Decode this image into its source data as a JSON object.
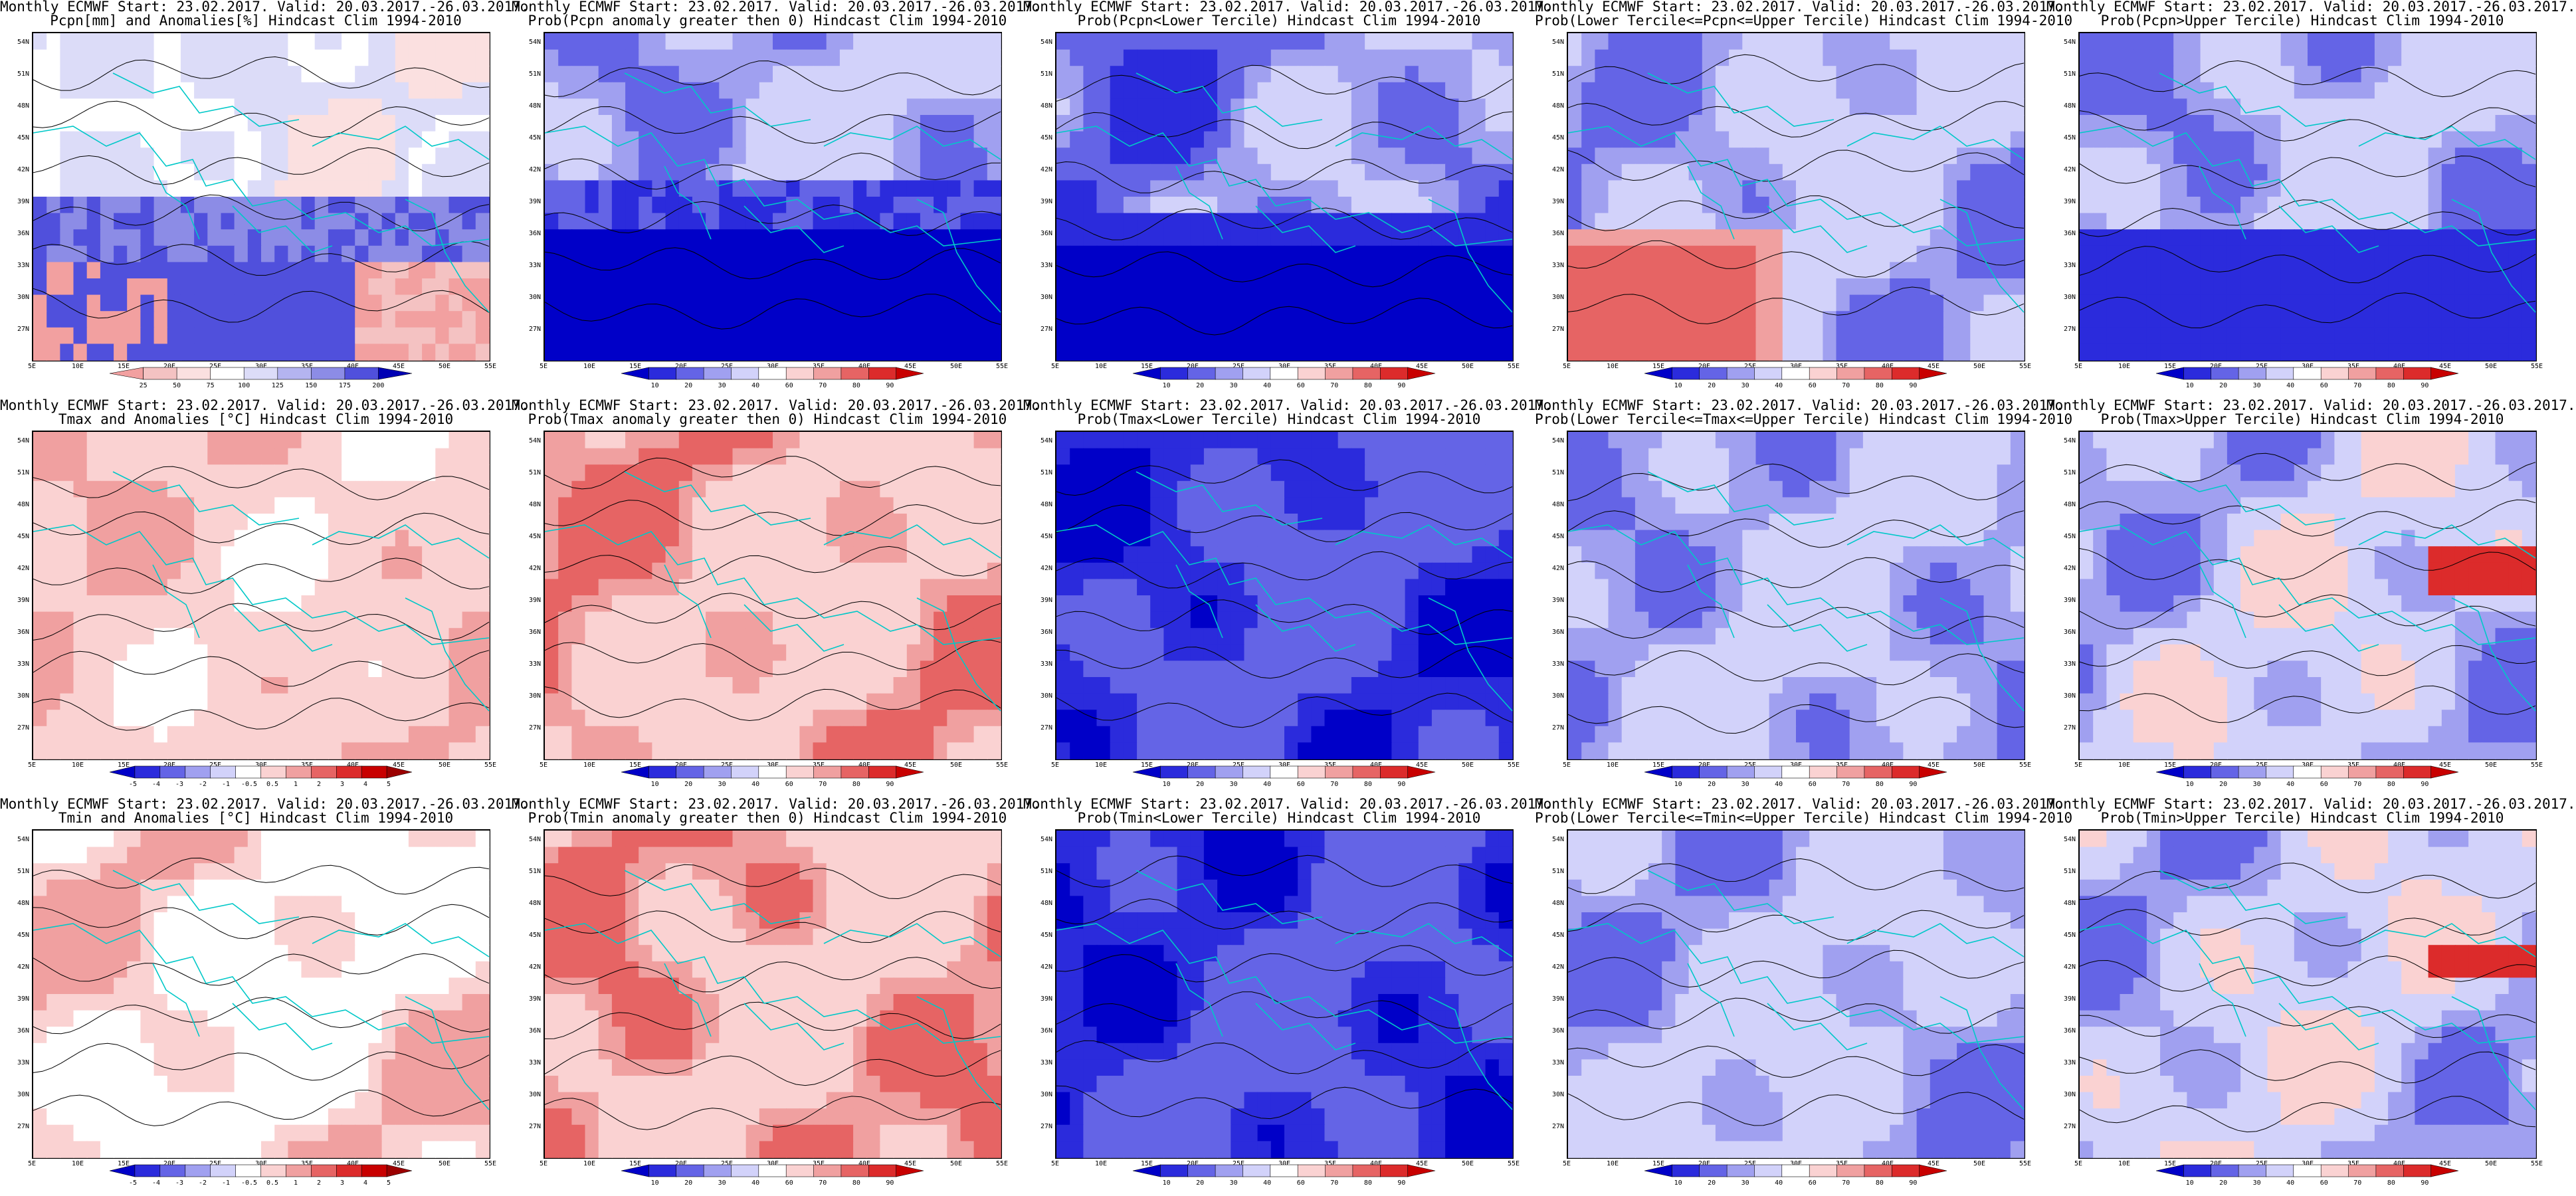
{
  "grid": {
    "rows": 3,
    "cols": 5,
    "lat_labels": [
      "54N",
      "51N",
      "48N",
      "45N",
      "42N",
      "39N",
      "36N",
      "33N",
      "30N",
      "27N"
    ],
    "lon_labels": [
      "5E",
      "10E",
      "15E",
      "20E",
      "25E",
      "30E",
      "35E",
      "40E",
      "45E",
      "50E",
      "55E"
    ]
  },
  "panels": [
    {
      "line1": "Monthly ECMWF Start: 23.02.2017. Valid: 20.03.2017.-26.03.2017.",
      "line2": "Pcpn[mm] and Anomalies[%] Hindcast Clim 1994-2010",
      "scale": "precip",
      "cb": [
        "25",
        "50",
        "75",
        "100",
        "125",
        "150",
        "175",
        "200"
      ]
    },
    {
      "line1": "Monthly ECMWF Start: 23.02.2017. Valid: 20.03.2017.-26.03.2017.",
      "line2": "Prob(Pcpn anomaly greater then 0) Hindcast Clim 1994-2010",
      "scale": "prob",
      "cb": [
        "10",
        "20",
        "30",
        "40",
        "60",
        "70",
        "80",
        "90"
      ]
    },
    {
      "line1": "Monthly ECMWF Start: 23.02.2017. Valid: 20.03.2017.-26.03.2017.",
      "line2": "Prob(Pcpn<Lower Tercile) Hindcast Clim 1994-2010",
      "scale": "prob",
      "cb": [
        "10",
        "20",
        "30",
        "40",
        "60",
        "70",
        "80",
        "90"
      ]
    },
    {
      "line1": "Monthly ECMWF Start: 23.02.2017. Valid: 20.03.2017.-26.03.2017.",
      "line2": "Prob(Lower Tercile<=Pcpn<=Upper Tercile) Hindcast Clim 1994-2010",
      "scale": "prob",
      "cb": [
        "10",
        "20",
        "30",
        "40",
        "60",
        "70",
        "80",
        "90"
      ]
    },
    {
      "line1": "Monthly ECMWF Start: 23.02.2017. Valid: 20.03.2017.-26.03.2017.",
      "line2": "Prob(Pcpn>Upper Tercile) Hindcast Clim 1994-2010",
      "scale": "prob",
      "cb": [
        "10",
        "20",
        "30",
        "40",
        "60",
        "70",
        "80",
        "90"
      ]
    },
    {
      "line1": "Monthly ECMWF Start: 23.02.2017. Valid: 20.03.2017.-26.03.2017.",
      "line2": "Tmax and Anomalies [°C] Hindcast Clim 1994-2010",
      "scale": "temp",
      "cb": [
        "-5",
        "-4",
        "-3",
        "-2",
        "-1",
        "-0.5",
        "0.5",
        "1",
        "2",
        "3",
        "4",
        "5"
      ]
    },
    {
      "line1": "Monthly ECMWF Start: 23.02.2017. Valid: 20.03.2017.-26.03.2017.",
      "line2": "Prob(Tmax anomaly greater then 0) Hindcast Clim 1994-2010",
      "scale": "prob",
      "cb": [
        "10",
        "20",
        "30",
        "40",
        "60",
        "70",
        "80",
        "90"
      ]
    },
    {
      "line1": "Monthly ECMWF Start: 23.02.2017. Valid: 20.03.2017.-26.03.2017.",
      "line2": "Prob(Tmax<Lower Tercile) Hindcast Clim 1994-2010",
      "scale": "prob",
      "cb": [
        "10",
        "20",
        "30",
        "40",
        "60",
        "70",
        "80",
        "90"
      ]
    },
    {
      "line1": "Monthly ECMWF Start: 23.02.2017. Valid: 20.03.2017.-26.03.2017.",
      "line2": "Prob(Lower Tercile<=Tmax<=Upper Tercile) Hindcast Clim 1994-2010",
      "scale": "prob",
      "cb": [
        "10",
        "20",
        "30",
        "40",
        "60",
        "70",
        "80",
        "90"
      ]
    },
    {
      "line1": "Monthly ECMWF Start: 23.02.2017. Valid: 20.03.2017.-26.03.2017.",
      "line2": "Prob(Tmax>Upper Tercile) Hindcast Clim 1994-2010",
      "scale": "prob",
      "cb": [
        "10",
        "20",
        "30",
        "40",
        "60",
        "70",
        "80",
        "90"
      ]
    },
    {
      "line1": "Monthly ECMWF Start: 23.02.2017. Valid: 20.03.2017.-26.03.2017.",
      "line2": "Tmin and Anomalies [°C] Hindcast Clim 1994-2010",
      "scale": "temp",
      "cb": [
        "-5",
        "-4",
        "-3",
        "-2",
        "-1",
        "-0.5",
        "0.5",
        "1",
        "2",
        "3",
        "4",
        "5"
      ]
    },
    {
      "line1": "Monthly ECMWF Start: 23.02.2017. Valid: 20.03.2017.-26.03.2017.",
      "line2": "Prob(Tmin anomaly greater then 0) Hindcast Clim 1994-2010",
      "scale": "prob",
      "cb": [
        "10",
        "20",
        "30",
        "40",
        "60",
        "70",
        "80",
        "90"
      ]
    },
    {
      "line1": "Monthly ECMWF Start: 23.02.2017. Valid: 20.03.2017.-26.03.2017.",
      "line2": "Prob(Tmin<Lower Tercile) Hindcast Clim 1994-2010",
      "scale": "prob",
      "cb": [
        "10",
        "20",
        "30",
        "40",
        "60",
        "70",
        "80",
        "90"
      ]
    },
    {
      "line1": "Monthly ECMWF Start: 23.02.2017. Valid: 20.03.2017.-26.03.2017.",
      "line2": "Prob(Lower Tercile<=Tmin<=Upper Tercile) Hindcast Clim 1994-2010",
      "scale": "prob",
      "cb": [
        "10",
        "20",
        "30",
        "40",
        "60",
        "70",
        "80",
        "90"
      ]
    },
    {
      "line1": "Monthly ECMWF Start: 23.02.2017. Valid: 20.03.2017.-26.03.2017.",
      "line2": "Prob(Tmin>Upper Tercile) Hindcast Clim 1994-2010",
      "scale": "prob",
      "cb": [
        "10",
        "20",
        "30",
        "40",
        "60",
        "70",
        "80",
        "90"
      ]
    }
  ],
  "colors": {
    "coast": "#00c8c8",
    "contour": "#000000",
    "precip_ramp": [
      "#f2a0a0",
      "#f4c2c2",
      "#fbe0e0",
      "#ffffff",
      "#dcdcf8",
      "#b4b4f0",
      "#8c8ce6",
      "#5050dc",
      "#0000b4"
    ],
    "prob_ramp": [
      "#0000c8",
      "#2b2bdc",
      "#6464e6",
      "#a0a0f0",
      "#d2d2fa",
      "#ffffff",
      "#fad2d2",
      "#f0a0a0",
      "#e66464",
      "#dc2b2b",
      "#c80000"
    ],
    "temp_ramp": [
      "#0000c8",
      "#2b2bdc",
      "#6464e6",
      "#a0a0f0",
      "#d2d2fa",
      "#ffffff",
      "#fad2d2",
      "#f0a0a0",
      "#e66464",
      "#dc2b2b",
      "#c80000",
      "#9b0000"
    ]
  }
}
